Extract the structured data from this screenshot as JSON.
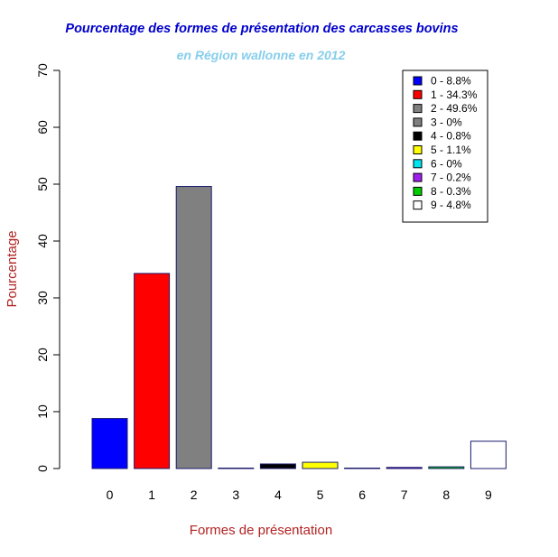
{
  "chart_data": {
    "type": "bar",
    "title": "Pourcentage des formes de présentation des carcasses bovins",
    "subtitle": "en Région wallonne en 2012",
    "xlabel": "Formes de présentation",
    "ylabel": "Pourcentage",
    "categories": [
      "0",
      "1",
      "2",
      "3",
      "4",
      "5",
      "6",
      "7",
      "8",
      "9"
    ],
    "values": [
      8.8,
      34.3,
      49.6,
      0,
      0.8,
      1.1,
      0,
      0.2,
      0.3,
      4.8
    ],
    "colors": [
      "#0000ff",
      "#ff0000",
      "#808080",
      "#808080",
      "#000000",
      "#ffff00",
      "#00e5ee",
      "#a020f0",
      "#00cc00",
      "#ffffff"
    ],
    "ylim": [
      0,
      70
    ],
    "yticks": [
      "0",
      "10",
      "20",
      "30",
      "40",
      "50",
      "60",
      "70"
    ],
    "legend": {
      "placement": "top-right",
      "entries": [
        "0 - 8.8%",
        "1 - 34.3%",
        "2 - 49.6%",
        "3 - 0%",
        "4 - 0.8%",
        "5 - 1.1%",
        "6 - 0%",
        "7 - 0.2%",
        "8 - 0.3%",
        "9 - 4.8%"
      ]
    },
    "grid": false,
    "title_color": "#0000cc",
    "subtitle_color": "#87ceeb",
    "axis_label_color": "#b22222"
  }
}
